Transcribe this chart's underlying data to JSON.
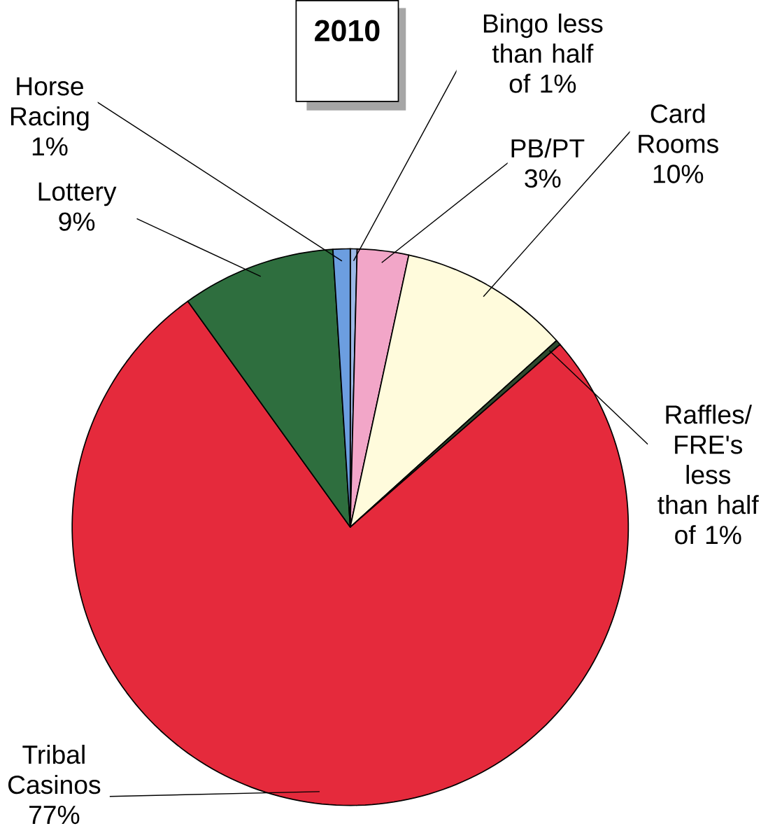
{
  "chart_data": {
    "type": "pie",
    "title": "2010",
    "categories": [
      "Bingo",
      "PB/PT",
      "Card Rooms",
      "Raffles/ FRE's",
      "Tribal Casinos",
      "Lottery",
      "Horse Racing"
    ],
    "values": [
      0.4,
      3,
      10,
      0.3,
      77,
      9,
      1
    ],
    "value_labels": [
      "less than half of 1%",
      "3%",
      "10%",
      "less than half of 1%",
      "77%",
      "9%",
      "1%"
    ],
    "colors": [
      "#9cb8e6",
      "#f2a6c8",
      "#fffbdc",
      "#2f4a2f",
      "#e52a3c",
      "#2e6e3e",
      "#6c9ee0"
    ]
  }
}
